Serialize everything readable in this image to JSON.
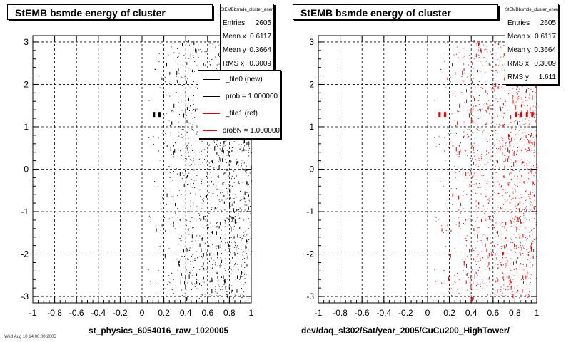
{
  "chart_data": [
    {
      "type": "scatter",
      "title": "StEMB bsmde energy of cluster",
      "xlim": [
        -1,
        1
      ],
      "ylim": [
        -3.15,
        3.15
      ],
      "x_ticks": [
        "-1",
        "-0.8",
        "-0.6",
        "-0.4",
        "-0.2",
        "0",
        "0.2",
        "0.4",
        "0.6",
        "0.8",
        "1"
      ],
      "y_ticks": [
        "3",
        "2",
        "1",
        "0",
        "-1",
        "-2",
        "-3"
      ],
      "grid": true,
      "xlabel": "st_physics_6054016_raw_1020005",
      "color": "#000000",
      "x_range_of_points": [
        0,
        1
      ],
      "stats": {
        "header": "StEMBbsmde_cluster_energy",
        "rows": [
          {
            "label": "Entries",
            "value": "2605"
          },
          {
            "label": "Mean x",
            "value": "0.6117"
          },
          {
            "label": "Mean y",
            "value": "0.3664"
          },
          {
            "label": "RMS x",
            "value": "0.3009"
          }
        ]
      },
      "legend": [
        {
          "label": "_file0 (new)",
          "color": "#000000"
        },
        {
          "label": "prob = 1.000000",
          "color": "#000000"
        },
        {
          "label": "_file1 (ref)",
          "color": "#e00000"
        },
        {
          "label": "probN = 1.000000",
          "color": "#e00000"
        }
      ],
      "legend_position": "top-right"
    },
    {
      "type": "scatter",
      "title": "StEMB bsmde energy of cluster",
      "xlim": [
        -1,
        1
      ],
      "ylim": [
        -3.15,
        3.15
      ],
      "x_ticks": [
        "-1",
        "-0.8",
        "-0.6",
        "-0.4",
        "-0.2",
        "0",
        "0.2",
        "0.4",
        "0.6",
        "0.8",
        "1"
      ],
      "y_ticks": [
        "3",
        "2",
        "1",
        "0",
        "-1",
        "-2",
        "-3"
      ],
      "grid": true,
      "xlabel": "dev/daq_sl302/Sat/year_2005/CuCu200_HighTower/",
      "color": "#e00000",
      "x_range_of_points": [
        0,
        1
      ],
      "stats": {
        "header": "StEMBbsmde_cluster_energy",
        "rows": [
          {
            "label": "Entries",
            "value": "2605"
          },
          {
            "label": "Mean x",
            "value": "0.6117"
          },
          {
            "label": "Mean y",
            "value": "0.3664"
          },
          {
            "label": "RMS x",
            "value": "0.3009"
          },
          {
            "label": "RMS y",
            "value": "1.611"
          }
        ]
      }
    }
  ],
  "footer_text": "Wed Aug 10 14:00:00 2005"
}
